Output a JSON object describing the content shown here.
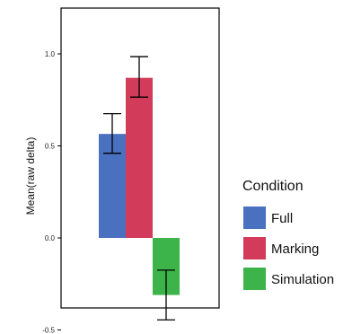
{
  "chart_data": {
    "type": "bar",
    "title": "",
    "xlabel": "",
    "ylabel": "Mean(raw delta)",
    "ylim": [
      -0.5,
      1.25
    ],
    "yticks": [
      {
        "value": 1.0,
        "label": "1.0"
      },
      {
        "value": 0.5,
        "label": "0.5"
      },
      {
        "value": 0.0,
        "label": "0.0"
      },
      {
        "value": -0.5,
        "label": "-0.5"
      }
    ],
    "grid": false,
    "legend": {
      "title": "Condition",
      "position": "right"
    },
    "series": [
      {
        "name": "Full",
        "color": "#4a70c0",
        "value": 0.565,
        "err_low": 0.46,
        "err_high": 0.675
      },
      {
        "name": "Marking",
        "color": "#d23c5a",
        "value": 0.87,
        "err_low": 0.765,
        "err_high": 0.985
      },
      {
        "name": "Simulation",
        "color": "#3cb44a",
        "value": -0.31,
        "err_low": -0.445,
        "err_high": -0.175
      }
    ]
  }
}
